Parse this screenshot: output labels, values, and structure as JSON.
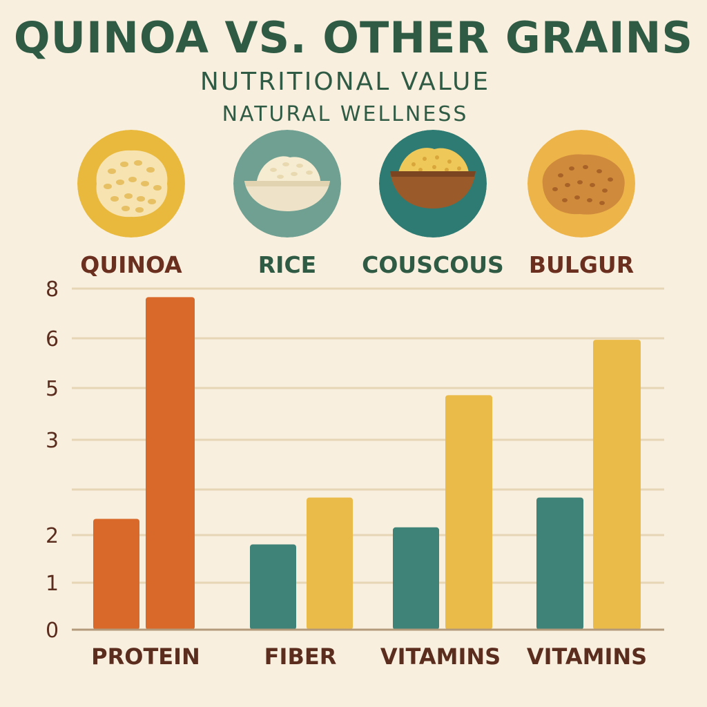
{
  "header": {
    "title": "QUINOA VS. OTHER GRAINS",
    "subtitle": "NUTRITIONAL VALUE",
    "tagline": "NATURAL WELLNESS"
  },
  "grains": [
    {
      "label": "QUINOA",
      "icon": "quinoa-icon",
      "color": "#6b2f1f",
      "circle": "#e9b93e"
    },
    {
      "label": "RICE",
      "icon": "rice-bowl-icon",
      "color": "#2f5a44",
      "circle": "#6fa092"
    },
    {
      "label": "COUSCOUS",
      "icon": "couscous-bowl-icon",
      "color": "#2f5a44",
      "circle": "#2e7b73"
    },
    {
      "label": "BULGUR",
      "icon": "bulgur-icon",
      "color": "#6b2f1f",
      "circle": "#edb44a"
    }
  ],
  "colors": {
    "orange": "#d9692b",
    "teal": "#3f8378",
    "yellow": "#ebbb4a",
    "grid": "#e7d6b6",
    "axis": "#b39a7a",
    "text": "#5b2d1e"
  },
  "chart_data": {
    "type": "bar",
    "categories": [
      "PROTEIN",
      "FIBER",
      "VITAMINS",
      "VITAMINS"
    ],
    "yticks": [
      "0",
      "1",
      "2",
      "3",
      "5",
      "6",
      "8"
    ],
    "series": [
      {
        "values": [
          2.6,
          2.0,
          2.4,
          3.1
        ],
        "colors": [
          "#d9692b",
          "#3f8378",
          "#3f8378",
          "#3f8378"
        ]
      },
      {
        "values": [
          7.8,
          3.1,
          5.5,
          6.8
        ],
        "colors": [
          "#d9692b",
          "#ebbb4a",
          "#ebbb4a",
          "#ebbb4a"
        ]
      }
    ],
    "ylim": [
      0,
      8
    ],
    "grid": true
  }
}
